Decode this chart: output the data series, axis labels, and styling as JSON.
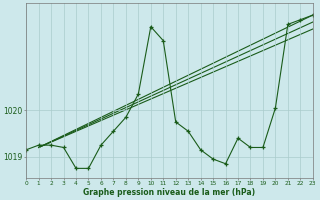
{
  "title": "Graphe pression niveau de la mer (hPa)",
  "bg_color": "#cde8eb",
  "grid_color": "#aacccc",
  "line_color": "#1a5c1a",
  "xmin": 0,
  "xmax": 23,
  "ymin": 1018.55,
  "ymax": 1022.3,
  "yticks": [
    1019,
    1020
  ],
  "xticks": [
    0,
    1,
    2,
    3,
    4,
    5,
    6,
    7,
    8,
    9,
    10,
    11,
    12,
    13,
    14,
    15,
    16,
    17,
    18,
    19,
    20,
    21,
    22,
    23
  ],
  "main_x": [
    0,
    1,
    2,
    3,
    4,
    5,
    6,
    7,
    8,
    9,
    10,
    11,
    12,
    13,
    14,
    15,
    16,
    17,
    18,
    19,
    20,
    21,
    22,
    23
  ],
  "main_y": [
    1019.15,
    1019.25,
    1019.25,
    1019.2,
    1018.75,
    1018.75,
    1019.25,
    1019.55,
    1019.85,
    1020.35,
    1021.8,
    1021.5,
    1019.75,
    1019.55,
    1019.15,
    1018.95,
    1018.85,
    1019.4,
    1019.2,
    1019.2,
    1020.05,
    1021.85,
    1021.95,
    1022.05
  ],
  "trend_lines": [
    {
      "x": [
        1,
        23
      ],
      "y": [
        1019.2,
        1021.75
      ]
    },
    {
      "x": [
        1,
        23
      ],
      "y": [
        1019.2,
        1021.9
      ]
    },
    {
      "x": [
        1,
        23
      ],
      "y": [
        1019.2,
        1022.05
      ]
    }
  ]
}
